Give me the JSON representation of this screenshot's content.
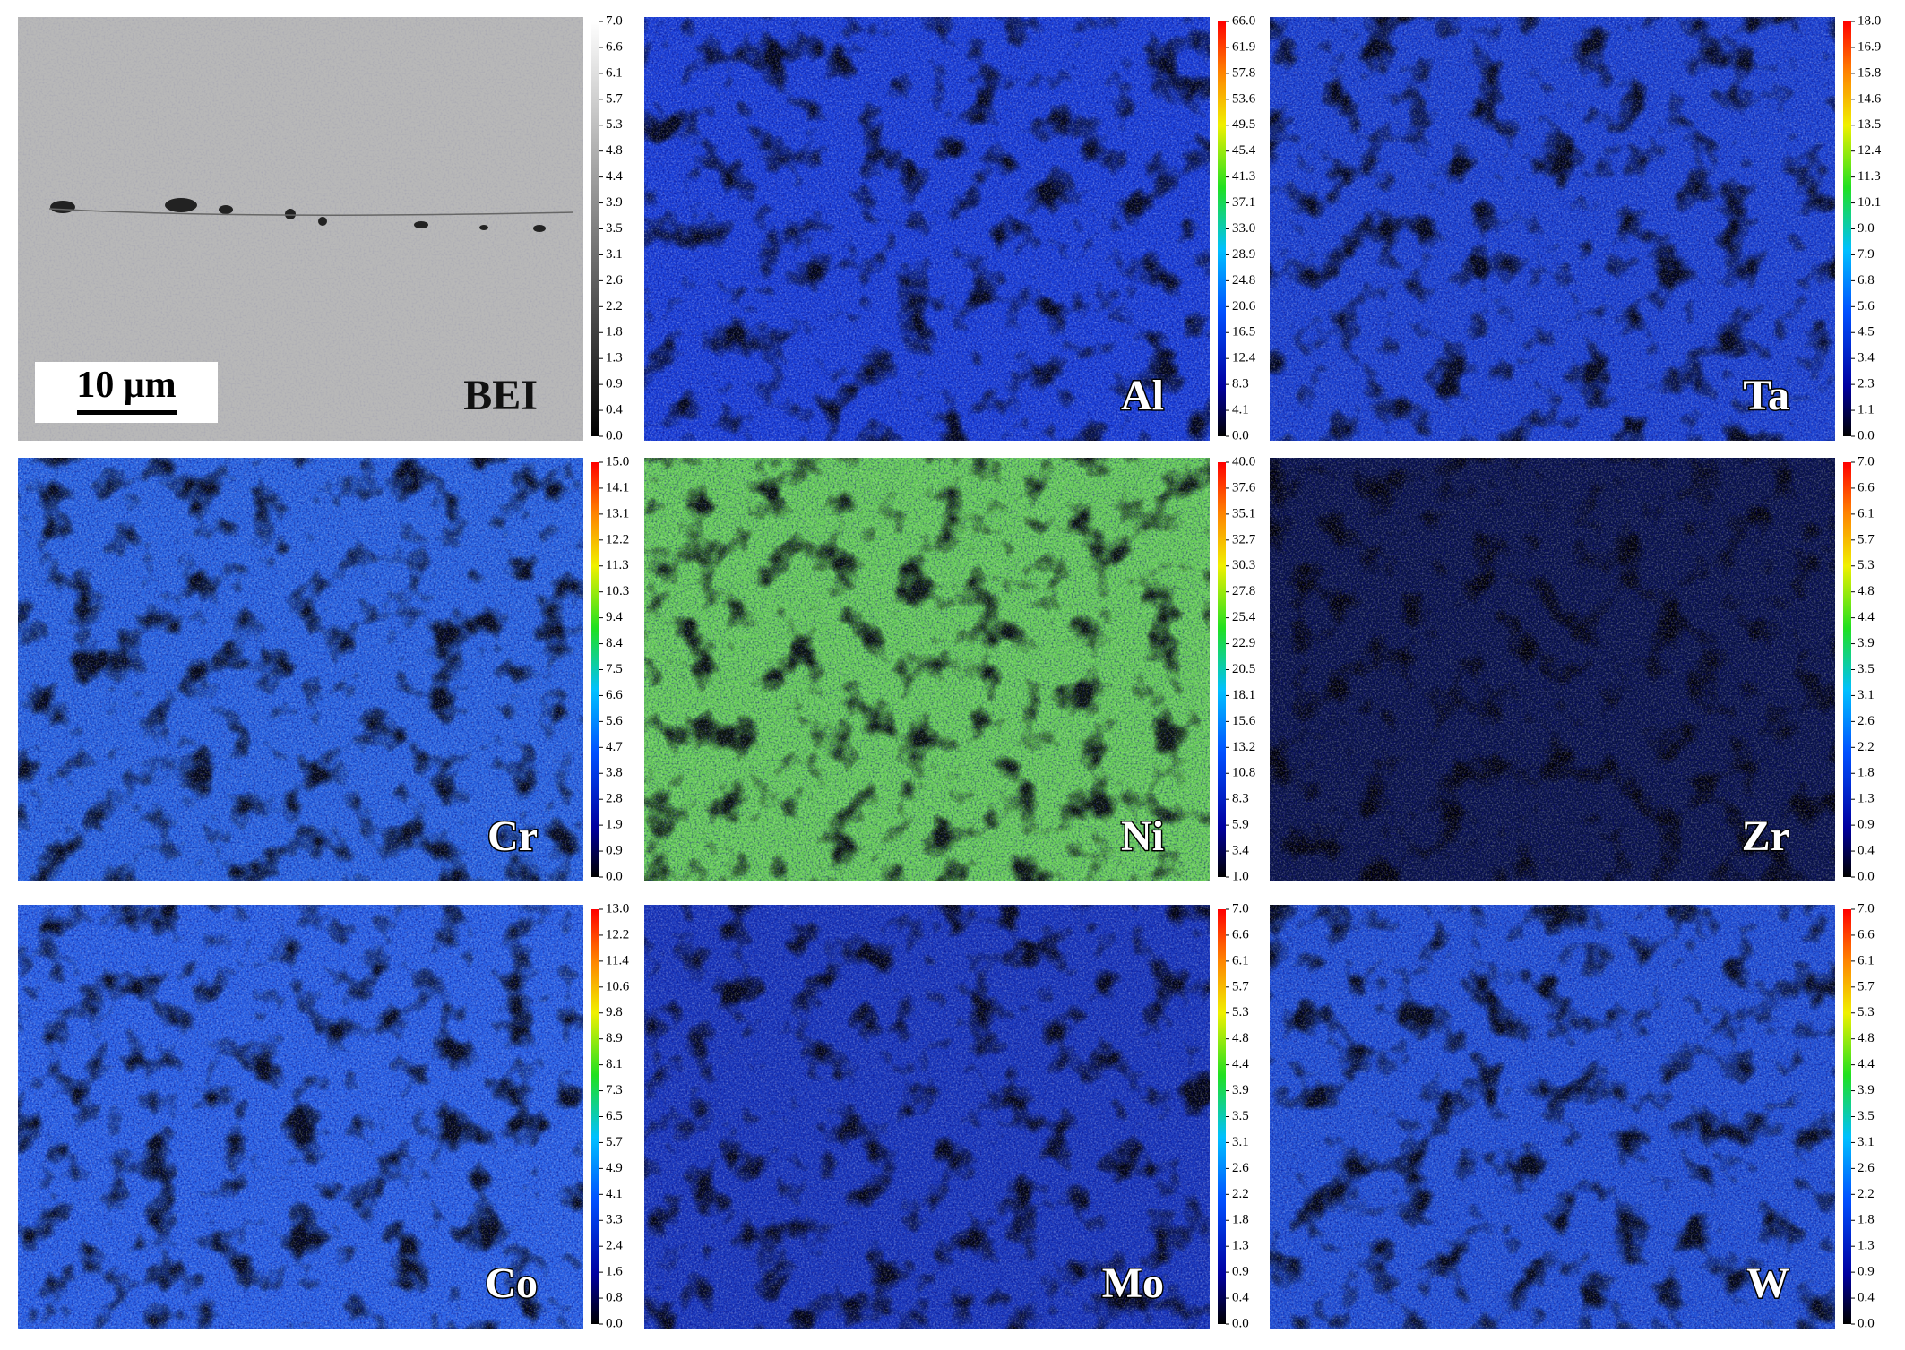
{
  "figure": {
    "scale_bar": "10 μm",
    "panels": [
      {
        "label": "BEI",
        "ticks": [
          "7.0",
          "6.6",
          "6.1",
          "5.7",
          "5.3",
          "4.8",
          "4.4",
          "3.9",
          "3.5",
          "3.1",
          "2.6",
          "2.2",
          "1.8",
          "1.3",
          "0.9",
          "0.4",
          "0.0"
        ]
      },
      {
        "label": "Al",
        "ticks": [
          "66.0",
          "61.9",
          "57.8",
          "53.6",
          "49.5",
          "45.4",
          "41.3",
          "37.1",
          "33.0",
          "28.9",
          "24.8",
          "20.6",
          "16.5",
          "12.4",
          "8.3",
          "4.1",
          "0.0"
        ]
      },
      {
        "label": "Ta",
        "ticks": [
          "18.0",
          "16.9",
          "15.8",
          "14.6",
          "13.5",
          "12.4",
          "11.3",
          "10.1",
          "9.0",
          "7.9",
          "6.8",
          "5.6",
          "4.5",
          "3.4",
          "2.3",
          "1.1",
          "0.0"
        ]
      },
      {
        "label": "Cr",
        "ticks": [
          "15.0",
          "14.1",
          "13.1",
          "12.2",
          "11.3",
          "10.3",
          "9.4",
          "8.4",
          "7.5",
          "6.6",
          "5.6",
          "4.7",
          "3.8",
          "2.8",
          "1.9",
          "0.9",
          "0.0"
        ]
      },
      {
        "label": "Ni",
        "ticks": [
          "40.0",
          "37.6",
          "35.1",
          "32.7",
          "30.3",
          "27.8",
          "25.4",
          "22.9",
          "20.5",
          "18.1",
          "15.6",
          "13.2",
          "10.8",
          "8.3",
          "5.9",
          "3.4",
          "1.0"
        ]
      },
      {
        "label": "Zr",
        "ticks": [
          "7.0",
          "6.6",
          "6.1",
          "5.7",
          "5.3",
          "4.8",
          "4.4",
          "3.9",
          "3.5",
          "3.1",
          "2.6",
          "2.2",
          "1.8",
          "1.3",
          "0.9",
          "0.4",
          "0.0"
        ]
      },
      {
        "label": "Co",
        "ticks": [
          "13.0",
          "12.2",
          "11.4",
          "10.6",
          "9.8",
          "8.9",
          "8.1",
          "7.3",
          "6.5",
          "5.7",
          "4.9",
          "4.1",
          "3.3",
          "2.4",
          "1.6",
          "0.8",
          "0.0"
        ]
      },
      {
        "label": "Mo",
        "ticks": [
          "7.0",
          "6.6",
          "6.1",
          "5.7",
          "5.3",
          "4.8",
          "4.4",
          "3.9",
          "3.5",
          "3.1",
          "2.6",
          "2.2",
          "1.8",
          "1.3",
          "0.9",
          "0.4",
          "0.0"
        ]
      },
      {
        "label": "W",
        "ticks": [
          "7.0",
          "6.6",
          "6.1",
          "5.7",
          "5.3",
          "4.8",
          "4.4",
          "3.9",
          "3.5",
          "3.1",
          "2.6",
          "2.2",
          "1.8",
          "1.3",
          "0.9",
          "0.4",
          "0.0"
        ]
      }
    ]
  }
}
